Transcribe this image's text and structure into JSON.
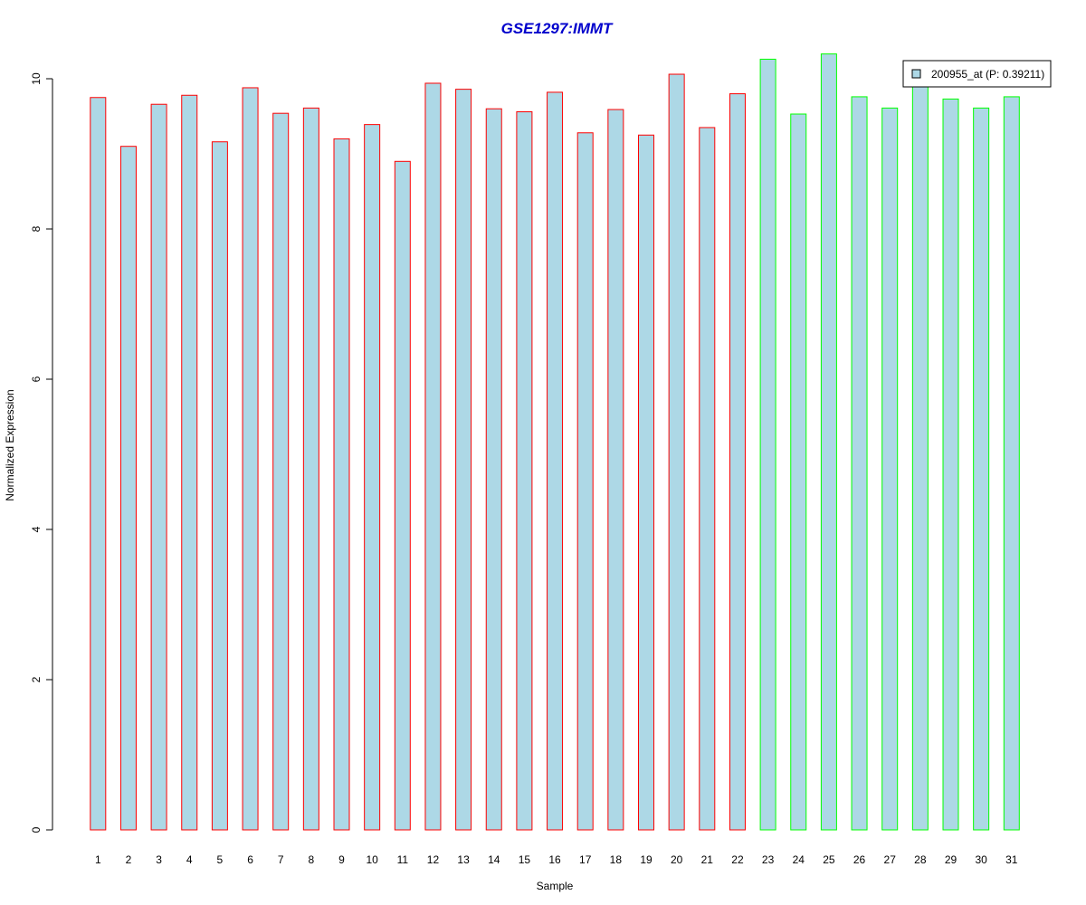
{
  "chart_data": {
    "type": "bar",
    "title": "GSE1297:IMMT",
    "xlabel": "Sample",
    "ylabel": "Normalized Expression",
    "categories": [
      "1",
      "2",
      "3",
      "4",
      "5",
      "6",
      "7",
      "8",
      "9",
      "10",
      "11",
      "12",
      "13",
      "14",
      "15",
      "16",
      "17",
      "18",
      "19",
      "20",
      "21",
      "22",
      "23",
      "24",
      "25",
      "26",
      "27",
      "28",
      "29",
      "30",
      "31"
    ],
    "values": [
      9.75,
      9.1,
      9.66,
      9.78,
      9.16,
      9.88,
      9.54,
      9.61,
      9.2,
      9.39,
      8.9,
      9.94,
      9.86,
      9.6,
      9.56,
      9.82,
      9.28,
      9.59,
      9.25,
      10.06,
      9.35,
      9.8,
      10.26,
      9.53,
      10.33,
      9.76,
      9.61,
      9.9,
      9.73,
      9.61,
      9.76
    ],
    "groups": [
      1,
      1,
      1,
      1,
      1,
      1,
      1,
      1,
      1,
      1,
      1,
      1,
      1,
      1,
      1,
      1,
      1,
      1,
      1,
      1,
      1,
      1,
      2,
      2,
      2,
      2,
      2,
      2,
      2,
      2,
      2
    ],
    "yticks": [
      0,
      2,
      4,
      6,
      8,
      10
    ],
    "ylim": [
      0,
      10.6
    ],
    "legend": {
      "label": "200955_at (P: 0.39211)",
      "position": "top-right"
    },
    "grid": false,
    "colors": {
      "title": "#0000cc",
      "bar_fill": "#add8e6",
      "group1_border": "#ff0000",
      "group2_border": "#00ff00",
      "axis": "#000000"
    }
  }
}
